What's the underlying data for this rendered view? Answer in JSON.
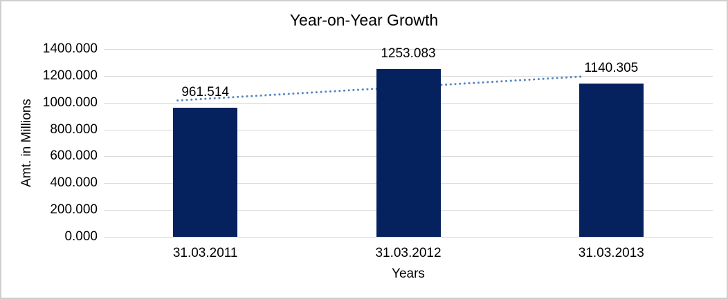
{
  "chart_data": {
    "type": "bar",
    "title": "Year-on-Year Growth",
    "xlabel": "Years",
    "ylabel": "Amt. in Millions",
    "categories": [
      "31.03.2011",
      "31.03.2012",
      "31.03.2013"
    ],
    "values": [
      961.514,
      1253.083,
      1140.305
    ],
    "value_labels": [
      "961.514",
      "1253.083",
      "1140.305"
    ],
    "ylim": [
      0,
      1400
    ],
    "ytick_values": [
      0,
      200,
      400,
      600,
      800,
      1000,
      1200,
      1400
    ],
    "ytick_labels": [
      "0.000",
      "200.000",
      "400.000",
      "600.000",
      "800.000",
      "1000.000",
      "1200.000",
      "1400.000"
    ],
    "grid": true,
    "legend": "none",
    "trendline": {
      "type": "linear",
      "style": "dotted"
    },
    "colors": {
      "bar": "#05225f",
      "trendline": "#5585c5",
      "gridline": "#d9d9d9",
      "text": "#000000",
      "frame_border": "#cfcecd",
      "background": "#ffffff"
    }
  }
}
